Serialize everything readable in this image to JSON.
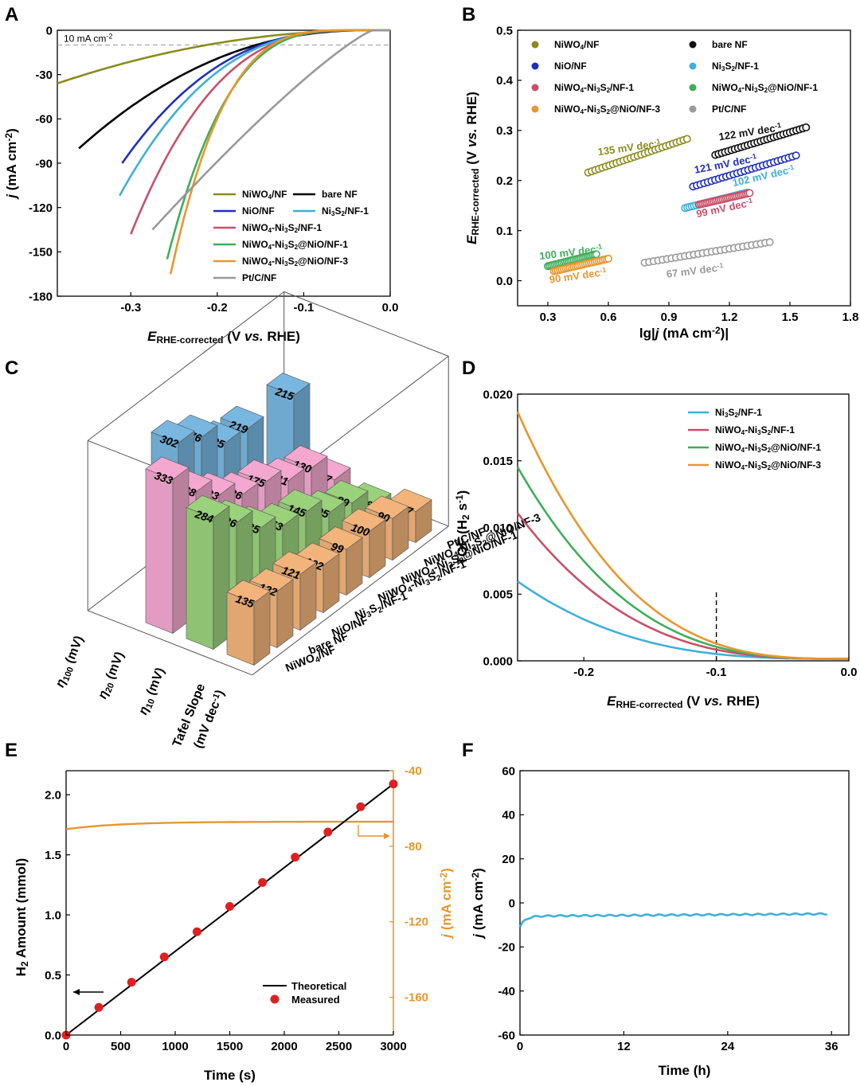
{
  "panels": {
    "A": "A",
    "B": "B",
    "C": "C",
    "D": "D",
    "E": "E",
    "F": "F"
  },
  "chart_data": [
    {
      "id": "A",
      "type": "line",
      "xlabel": {
        "main": "E",
        "sub": "RHE-corrected",
        "rest": " (V ",
        "vs": "vs.",
        "end": " RHE)"
      },
      "ylabel": {
        "main": "j",
        "rest": " (mA cm",
        "sup": "-2",
        "end": ")"
      },
      "xlim": [
        -0.385,
        0.0
      ],
      "ylim": [
        -180,
        0
      ],
      "xticks": [
        -0.3,
        -0.2,
        -0.1,
        0.0
      ],
      "xticklabels": [
        "-0.3",
        "-0.2",
        "-0.1",
        "0.0"
      ],
      "yticks": [
        0,
        -30,
        -60,
        -90,
        -120,
        -150,
        -180
      ],
      "yticklabels": [
        "0",
        "-30",
        "-60",
        "-90",
        "-120",
        "-150",
        "-180"
      ],
      "annotation": {
        "text": "10 mA cm",
        "sup": "-2",
        "y": -10
      },
      "series": [
        {
          "key": "nwo",
          "name": "NiWO4/NF",
          "color": "#8b8b1f",
          "onset": -0.02,
          "end": -0.385,
          "jend": -36,
          "p": 2.0
        },
        {
          "key": "bare",
          "name": "bare NF",
          "color": "#000000",
          "onset": -0.025,
          "end": -0.36,
          "jend": -80,
          "p": 2.2
        },
        {
          "key": "nio",
          "name": "NiO/NF",
          "color": "#1f2fbf",
          "onset": -0.03,
          "end": -0.31,
          "jend": -90,
          "p": 2.6
        },
        {
          "key": "ns",
          "name": "Ni3S2/NF-1",
          "color": "#3fb0d8",
          "onset": -0.03,
          "end": -0.313,
          "jend": -112,
          "p": 2.7
        },
        {
          "key": "nwns",
          "name": "NiWO4-Ni3S2/NF-1",
          "color": "#c8506a",
          "onset": -0.035,
          "end": -0.3,
          "jend": -138,
          "p": 2.8
        },
        {
          "key": "nio1",
          "name": "NiWO4-Ni3S2@NiO/NF-1",
          "color": "#3fae5a",
          "onset": -0.04,
          "end": -0.258,
          "jend": -155,
          "p": 3.2
        },
        {
          "key": "nio3",
          "name": "NiWO4-Ni3S2@NiO/NF-3",
          "color": "#e8962e",
          "onset": -0.045,
          "end": -0.254,
          "jend": -165,
          "p": 3.4
        },
        {
          "key": "pt",
          "name": "Pt/C/NF",
          "color": "#999999",
          "onset": -0.02,
          "end": -0.275,
          "jend": -135,
          "p": 1.2
        }
      ],
      "legend": [
        [
          {
            "main": "NiWO",
            "sub": "4",
            "rest": "/NF",
            "color": "#8b8b1f"
          },
          {
            "main": "bare NF",
            "color": "#000000"
          }
        ],
        [
          {
            "main": "NiO/NF",
            "color": "#1f2fbf"
          },
          {
            "main": "Ni",
            "sub": "3",
            "rest": "S",
            "sub2": "2",
            "rest2": "/NF-1",
            "color": "#3fb0d8"
          }
        ],
        [
          {
            "main": "NiWO",
            "sub": "4",
            "rest": "-Ni",
            "sub2": "3",
            "rest2": "S",
            "sub3": "2",
            "rest3": "/NF-1",
            "color": "#c8506a"
          }
        ],
        [
          {
            "main": "NiWO",
            "sub": "4",
            "rest": "-Ni",
            "sub2": "3",
            "rest2": "S",
            "sub3": "2",
            "rest3": "@NiO/NF-1",
            "color": "#3fae5a"
          }
        ],
        [
          {
            "main": "NiWO",
            "sub": "4",
            "rest": "-Ni",
            "sub2": "3",
            "rest2": "S",
            "sub3": "2",
            "rest3": "@NiO/NF-3",
            "color": "#e8962e"
          }
        ],
        [
          {
            "main": "Pt/C/NF",
            "color": "#999999"
          }
        ]
      ]
    },
    {
      "id": "B",
      "type": "scatter",
      "xlabel": {
        "main": "lg|",
        "it": "j",
        "rest": " (mA cm",
        "sup": "-2",
        "end": ")|"
      },
      "ylabel": {
        "main": "E",
        "sub": "RHE-corrected",
        "rest": " (V ",
        "vs": "vs.",
        "end": " RHE)"
      },
      "xlim": [
        0.15,
        1.8
      ],
      "ylim": [
        -0.05,
        0.5
      ],
      "xticks": [
        0.3,
        0.6,
        0.9,
        1.2,
        1.5,
        1.8
      ],
      "xticklabels": [
        "0.3",
        "0.6",
        "0.9",
        "1.2",
        "1.5",
        "1.8"
      ],
      "yticks": [
        0.0,
        0.1,
        0.2,
        0.3,
        0.4,
        0.5
      ],
      "yticklabels": [
        "0.0",
        "0.1",
        "0.2",
        "0.3",
        "0.4",
        "0.5"
      ],
      "series": [
        {
          "name": "NiWO4/NF",
          "color": "#8b8b1f",
          "x": [
            0.5,
            0.99
          ],
          "y": [
            0.216,
            0.283
          ],
          "label": "135 mV dec",
          "lx": 0.55,
          "ly": 0.25,
          "rot": -8
        },
        {
          "name": "bare NF",
          "color": "#111111",
          "x": [
            1.13,
            1.58
          ],
          "y": [
            0.251,
            0.306
          ],
          "label": "122 mV dec",
          "lx": 1.15,
          "ly": 0.28,
          "rot": -9
        },
        {
          "name": "NiO/NF",
          "color": "#1f2fbf",
          "x": [
            1.02,
            1.53
          ],
          "y": [
            0.188,
            0.25
          ],
          "label": "121 mV dec",
          "lx": 1.03,
          "ly": 0.214,
          "rot": -11
        },
        {
          "name": "Ni3S2/NF-1",
          "color": "#3fb0d8",
          "x": [
            0.98,
            1.29
          ],
          "y": [
            0.145,
            0.176
          ],
          "label": "102 mV dec",
          "lx": 1.22,
          "ly": 0.188,
          "rot": -13
        },
        {
          "name": "NiWO4-Ni3S2/NF-1",
          "color": "#c8506a",
          "x": [
            1.05,
            1.3
          ],
          "y": [
            0.152,
            0.175
          ],
          "label": "99 mV dec",
          "lx": 1.04,
          "ly": 0.126,
          "rot": -12
        },
        {
          "name": "NiWO4-Ni3S2@NiO/NF-1",
          "color": "#3fae5a",
          "x": [
            0.3,
            0.54
          ],
          "y": [
            0.029,
            0.053
          ],
          "label": "100 mV dec",
          "lx": 0.26,
          "ly": 0.042,
          "rot": -7
        },
        {
          "name": "NiWO4-Ni3S2@NiO/NF-3",
          "color": "#e8962e",
          "x": [
            0.33,
            0.6
          ],
          "y": [
            0.019,
            0.044
          ],
          "label": "90 mV dec",
          "lx": 0.31,
          "ly": -0.005,
          "rot": -8
        },
        {
          "name": "Pt/C/NF",
          "color": "#9a9a9a",
          "x": [
            0.78,
            1.4
          ],
          "y": [
            0.036,
            0.077
          ],
          "label": "67 mV dec",
          "lx": 0.89,
          "ly": 0.006,
          "rot": -7
        }
      ],
      "label_sup": "-1",
      "legend": [
        [
          {
            "main": "NiWO",
            "sub": "4",
            "rest": "/NF",
            "color": "#8b8b1f"
          },
          {
            "main": "bare NF",
            "color": "#111111"
          }
        ],
        [
          {
            "main": "NiO/NF",
            "color": "#1f2fbf"
          },
          {
            "main": "Ni",
            "sub": "3",
            "rest": "S",
            "sub2": "2",
            "rest2": "/NF-1",
            "color": "#3fb0d8"
          }
        ],
        [
          {
            "main": "NiWO",
            "sub": "4",
            "rest": "-Ni",
            "sub2": "3",
            "rest2": "S",
            "sub3": "2",
            "rest3": "/NF-1",
            "color": "#c8506a"
          },
          {
            "main": "NiWO",
            "sub": "4",
            "rest": "-Ni",
            "sub2": "3",
            "rest2": "S",
            "sub3": "2",
            "rest3": "@NiO/NF-1",
            "color": "#3fae5a"
          }
        ],
        [
          {
            "main": "NiWO",
            "sub": "4",
            "rest": "-Ni",
            "sub2": "3",
            "rest2": "S",
            "sub3": "2",
            "rest3": "@NiO/NF-3",
            "color": "#e8962e"
          },
          {
            "main": "Pt/C/NF",
            "color": "#9a9a9a"
          }
        ]
      ]
    },
    {
      "id": "C",
      "type": "bar3d",
      "metrics": [
        "η100 (mV)",
        "η20 (mV)",
        "η10 (mV)",
        "Tafel Slope (mV dec-1)"
      ],
      "metric_labels": [
        {
          "main": "η",
          "sub": "100",
          "rest": " (mV)"
        },
        {
          "main": "η",
          "sub": "20",
          "rest": " (mV)"
        },
        {
          "main": "η",
          "sub": "10",
          "rest": " (mV)"
        },
        {
          "main": "Tafel Slope",
          "line2": "(mV dec",
          "sup": "-1",
          "end": ")"
        }
      ],
      "metric_colors": [
        "#6fa9cf",
        "#e29cc1",
        "#8fc273",
        "#e0a772"
      ],
      "samples": [
        "NiWO4/NF",
        "bare NF",
        "NiO/NF",
        "Ni3S2/NF-1",
        "NiWO4-Ni3S2/NF-1",
        "NiWO4-Ni3S2@NiO/NF-1",
        "NiWO4-Ni3S2@NiO/NF-3",
        "Pt/C/NF"
      ],
      "sample_labels": [
        {
          "main": "NiWO",
          "sub": "4",
          "rest": "/NF"
        },
        {
          "main": "bare NF"
        },
        {
          "main": "NiO/NF"
        },
        {
          "main": "Ni",
          "sub": "3",
          "rest": "S",
          "sub2": "2",
          "rest2": "/NF-1"
        },
        {
          "main": "NiWO",
          "sub": "4",
          "rest": "-Ni",
          "sub2": "3",
          "rest2": "S",
          "sub3": "2",
          "rest3": "/NF-1"
        },
        {
          "main": "NiWO",
          "sub": "4",
          "rest": "-Ni",
          "sub2": "3",
          "rest2": "S",
          "sub3": "2",
          "rest3": "@NiO/NF-1"
        },
        {
          "main": "NiWO",
          "sub": "4",
          "rest": "-Ni",
          "sub2": "3",
          "rest2": "S",
          "sub3": "2",
          "rest3": "@NiO/NF-3"
        },
        {
          "main": "Pt/C/NF"
        }
      ],
      "values": [
        [
          null,
          null,
          302,
          276,
          225,
          219,
          null,
          215
        ],
        [
          333,
          268,
          223,
          186,
          175,
          141,
          130,
          67
        ],
        [
          284,
          236,
          185,
          153,
          145,
          105,
          89,
          46
        ],
        [
          135,
          122,
          121,
          102,
          99,
          100,
          90,
          67
        ]
      ]
    },
    {
      "id": "D",
      "type": "line",
      "xlabel": {
        "main": "E",
        "sub": "RHE-corrected",
        "rest": " (V ",
        "vs": "vs.",
        "end": " RHE)"
      },
      "ylabel": {
        "main": "TOF (H",
        "sub": "2",
        "rest": " s",
        "sup": "-1",
        "end": ")"
      },
      "xlim": [
        -0.25,
        0.0
      ],
      "ylim": [
        0,
        0.02
      ],
      "xticks": [
        -0.2,
        -0.1,
        0.0
      ],
      "xticklabels": [
        "-0.2",
        "-0.1",
        "0.0"
      ],
      "yticks": [
        0,
        0.005,
        0.01,
        0.015,
        0.02
      ],
      "yticklabels": [
        "0.000",
        "0.005",
        "0.010",
        "0.015",
        "0.020"
      ],
      "vline_x": -0.1,
      "series": [
        {
          "name": "Ni3S2/NF-1",
          "color": "#3fb0d8",
          "y0": 0.0059,
          "k": 12,
          "p": 1.9
        },
        {
          "name": "NiWO4-Ni3S2/NF-1",
          "color": "#c8506a",
          "y0": 0.0111,
          "k": 15,
          "p": 1.9
        },
        {
          "name": "NiWO4-Ni3S2@NiO/NF-1",
          "color": "#3fae5a",
          "y0": 0.0146,
          "k": 17,
          "p": 1.9
        },
        {
          "name": "NiWO4-Ni3S2@NiO/NF-3",
          "color": "#e8962e",
          "y0": 0.0188,
          "k": 17,
          "p": 1.8
        }
      ],
      "legend": [
        {
          "main": "Ni",
          "sub": "3",
          "rest": "S",
          "sub2": "2",
          "rest2": "/NF-1",
          "color": "#3fb0d8"
        },
        {
          "main": "NiWO",
          "sub": "4",
          "rest": "-Ni",
          "sub2": "3",
          "rest2": "S",
          "sub3": "2",
          "rest3": "/NF-1",
          "color": "#c8506a"
        },
        {
          "main": "NiWO",
          "sub": "4",
          "rest": "-Ni",
          "sub2": "3",
          "rest2": "S",
          "sub3": "2",
          "rest3": "@NiO/NF-1",
          "color": "#3fae5a"
        },
        {
          "main": "NiWO",
          "sub": "4",
          "rest": "-Ni",
          "sub2": "3",
          "rest2": "S",
          "sub3": "2",
          "rest3": "@NiO/NF-3",
          "color": "#e8962e"
        }
      ]
    },
    {
      "id": "E",
      "type": "line+scatter (dual axis)",
      "xlabel": "Time (s)",
      "ylabel": {
        "main": "H",
        "sub": "2",
        "rest": " Amount (mmol)"
      },
      "y2label": {
        "main": "j",
        "rest": " (mA cm",
        "sup": "-2",
        "end": ")"
      },
      "xlim": [
        0,
        3000
      ],
      "ylim": [
        0,
        2.2
      ],
      "y2lim": [
        -180,
        -40
      ],
      "xticks": [
        0,
        500,
        1000,
        1500,
        2000,
        2500,
        3000
      ],
      "xticklabels": [
        "0",
        "500",
        "1000",
        "1500",
        "2000",
        "2500",
        "3000"
      ],
      "yticks": [
        0,
        0.5,
        1.0,
        1.5,
        2.0
      ],
      "yticklabels": [
        "0.0",
        "0.5",
        "1.0",
        "1.5",
        "2.0"
      ],
      "y2ticks": [
        -40,
        -80,
        -120,
        -160
      ],
      "y2ticklabels": [
        "-40",
        "-80",
        "-120",
        "-160"
      ],
      "theoretical": {
        "x": [
          0,
          3000
        ],
        "y": [
          0,
          2.09
        ]
      },
      "measured": {
        "x": [
          0,
          300,
          600,
          900,
          1200,
          1500,
          1800,
          2100,
          2400,
          2700,
          3000
        ],
        "y": [
          0.0,
          0.23,
          0.44,
          0.65,
          0.86,
          1.07,
          1.27,
          1.48,
          1.69,
          1.9,
          2.09
        ]
      },
      "current": {
        "start": -71,
        "plateau": -67
      },
      "legend": [
        "Theoretical",
        "Measured"
      ],
      "colors": {
        "line": "#000000",
        "marker": "#e02020",
        "current": "#e8962e"
      }
    },
    {
      "id": "F",
      "type": "line",
      "xlabel": "Time (h)",
      "ylabel": {
        "main": "j",
        "rest": " (mA cm",
        "sup": "-2",
        "end": ")"
      },
      "xlim": [
        0,
        38
      ],
      "ylim": [
        -60,
        60
      ],
      "xticks": [
        0,
        12,
        24,
        36
      ],
      "xticklabels": [
        "0",
        "12",
        "24",
        "36"
      ],
      "yticks": [
        60,
        40,
        20,
        0,
        -20,
        -40,
        -60
      ],
      "yticklabels": [
        "60",
        "40",
        "20",
        "0",
        "-20",
        "-40",
        "-60"
      ],
      "series": {
        "color": "#3fb0d8",
        "start": -11,
        "plateau": -6,
        "end_x": 35.5,
        "end_y": -5
      }
    }
  ]
}
